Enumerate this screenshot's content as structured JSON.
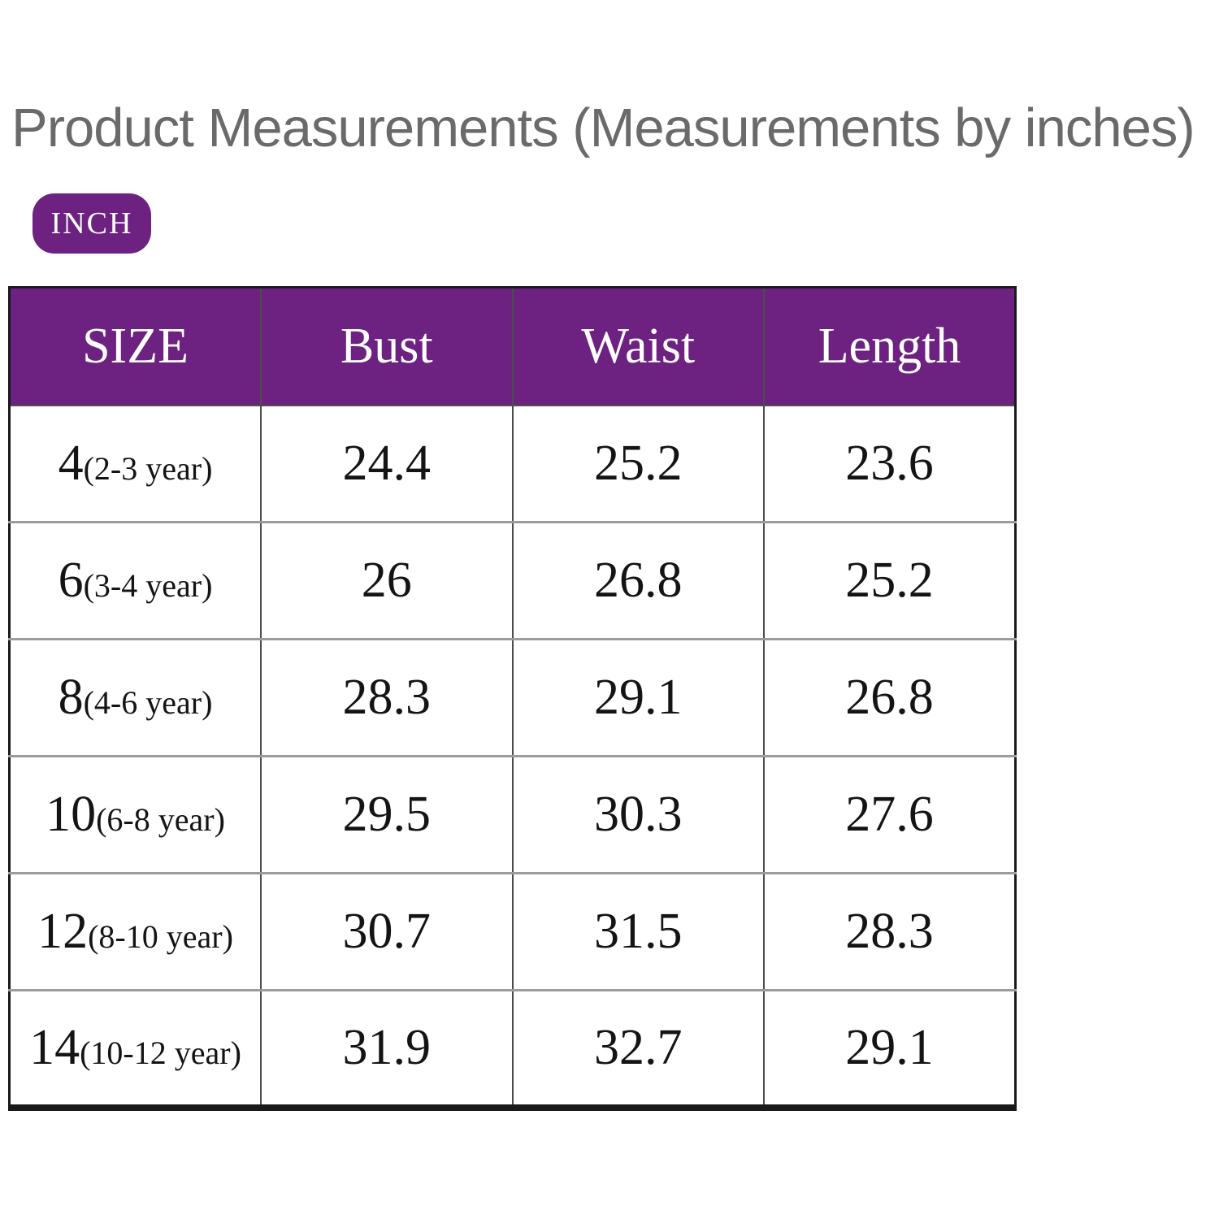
{
  "title": "Product Measurements (Measurements by inches)",
  "unit_toggle": {
    "label": "INCH"
  },
  "colors": {
    "purple": "#6D2180",
    "title_gray": "#6A6A6A",
    "cell_text": "#141414",
    "border_dark": "#1A1A1A",
    "border_mid": "#4D4D4D",
    "border_light": "#9B9B9B"
  },
  "table": {
    "headers": [
      "SIZE",
      "Bust",
      "Waist",
      "Length"
    ],
    "rows": [
      {
        "size": "4",
        "year": "(2-3 year)",
        "bust": "24.4",
        "waist": "25.2",
        "length": "23.6"
      },
      {
        "size": "6",
        "year": "(3-4 year)",
        "bust": "26",
        "waist": "26.8",
        "length": "25.2"
      },
      {
        "size": "8",
        "year": "(4-6 year)",
        "bust": "28.3",
        "waist": "29.1",
        "length": "26.8"
      },
      {
        "size": "10",
        "year": "(6-8 year)",
        "bust": "29.5",
        "waist": "30.3",
        "length": "27.6"
      },
      {
        "size": "12",
        "year": "(8-10 year)",
        "bust": "30.7",
        "waist": "31.5",
        "length": "28.3"
      },
      {
        "size": "14",
        "year": "(10-12 year)",
        "bust": "31.9",
        "waist": "32.7",
        "length": "29.1"
      }
    ]
  },
  "chart_data": {
    "type": "table",
    "title": "Product Measurements (Measurements by inches)",
    "unit": "inches",
    "columns": [
      "SIZE",
      "Bust",
      "Waist",
      "Length"
    ],
    "rows": [
      [
        "4 (2-3 year)",
        24.4,
        25.2,
        23.6
      ],
      [
        "6 (3-4 year)",
        26,
        26.8,
        25.2
      ],
      [
        "8 (4-6 year)",
        28.3,
        29.1,
        26.8
      ],
      [
        "10 (6-8 year)",
        29.5,
        30.3,
        27.6
      ],
      [
        "12 (8-10 year)",
        30.7,
        31.5,
        28.3
      ],
      [
        "14 (10-12 year)",
        31.9,
        32.7,
        29.1
      ]
    ]
  }
}
